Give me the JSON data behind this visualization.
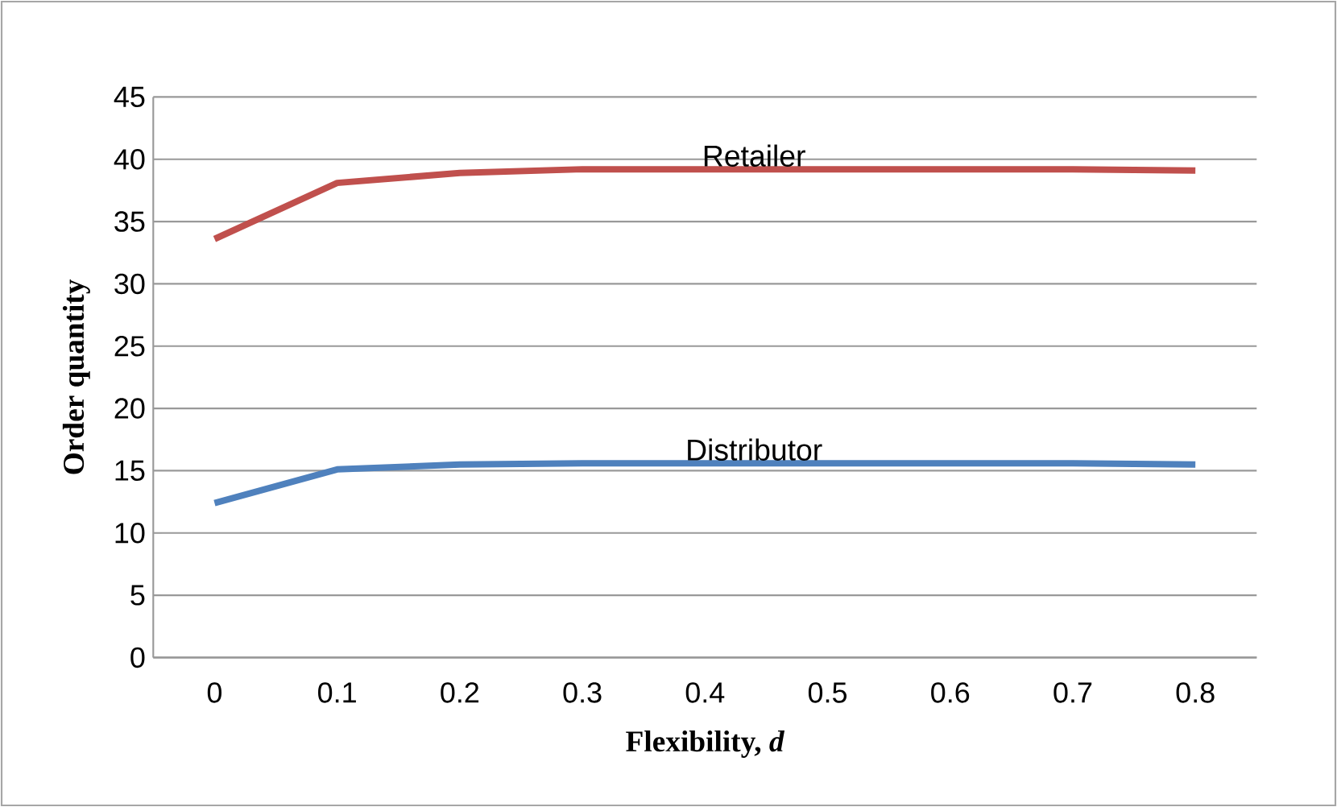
{
  "chart_data": {
    "type": "line",
    "xlabel": "Flexibility, *d*",
    "ylabel": "Order quantity",
    "categories": [
      "0",
      "0.1",
      "0.2",
      "0.3",
      "0.4",
      "0.5",
      "0.6",
      "0.7",
      "0.8"
    ],
    "series": [
      {
        "name": "Retailer",
        "color": "#c0504d",
        "values": [
          33.6,
          38.1,
          38.9,
          39.2,
          39.2,
          39.2,
          39.2,
          39.2,
          39.1
        ]
      },
      {
        "name": "Distributor",
        "color": "#4f81bd",
        "values": [
          12.4,
          15.1,
          15.5,
          15.6,
          15.6,
          15.6,
          15.6,
          15.6,
          15.5
        ]
      }
    ],
    "ylim": [
      0,
      45
    ],
    "yticks": [
      0,
      5,
      10,
      15,
      20,
      25,
      30,
      35,
      40,
      45
    ],
    "grid": "y",
    "legend": false,
    "marker": "none",
    "line_style": "solid"
  }
}
